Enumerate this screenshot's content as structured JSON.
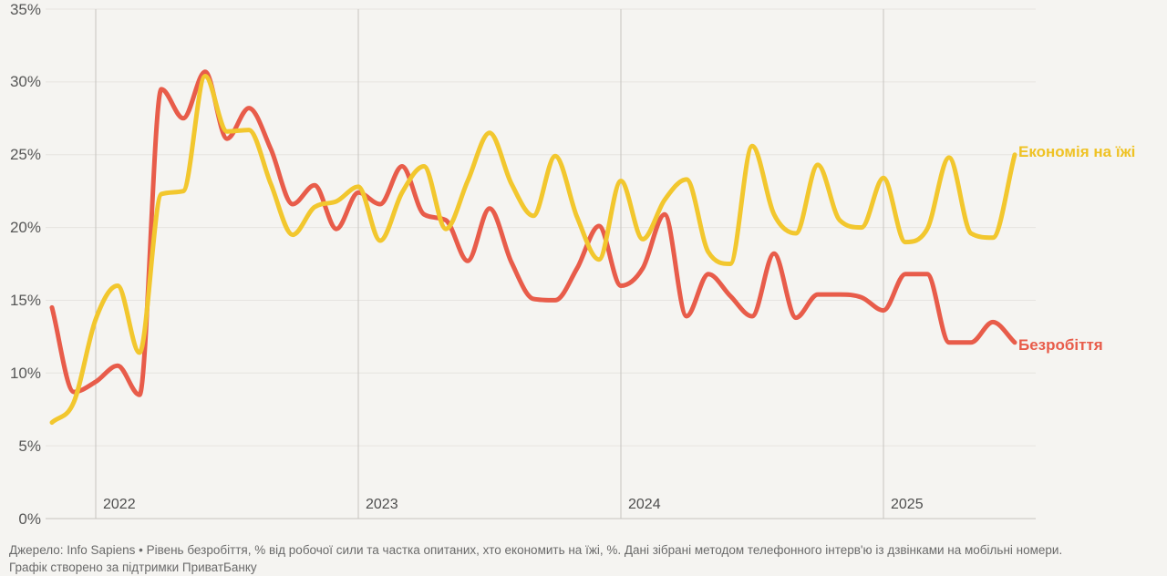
{
  "chart_data": {
    "type": "line",
    "title": "",
    "x": [
      "2021-11",
      "2021-12",
      "2022-01",
      "2022-02",
      "2022-03",
      "2022-04",
      "2022-05",
      "2022-06",
      "2022-07",
      "2022-08",
      "2022-09",
      "2022-10",
      "2022-11",
      "2022-12",
      "2023-01",
      "2023-02",
      "2023-03",
      "2023-04",
      "2023-05",
      "2023-06",
      "2023-07",
      "2023-08",
      "2023-09",
      "2023-10",
      "2023-11",
      "2023-12",
      "2024-01",
      "2024-02",
      "2024-03",
      "2024-04",
      "2024-05",
      "2024-06",
      "2024-07",
      "2024-08",
      "2024-09",
      "2024-10",
      "2024-11",
      "2024-12",
      "2025-01",
      "2025-02",
      "2025-03",
      "2025-04",
      "2025-05",
      "2025-06",
      "2025-07"
    ],
    "series": [
      {
        "name": "Безробіття",
        "color": "#e85c4a",
        "values": [
          14.5,
          8.7,
          9.4,
          10.5,
          8.5,
          29.5,
          27.5,
          30.7,
          26.1,
          28.2,
          25.4,
          21.6,
          22.9,
          19.9,
          22.4,
          21.6,
          24.2,
          20.9,
          20.5,
          17.7,
          21.3,
          17.6,
          15.1,
          15.0,
          17.2,
          20.1,
          16.0,
          17.2,
          20.9,
          13.9,
          16.8,
          15.3,
          13.9,
          18.2,
          13.8,
          15.4,
          15.4,
          15.2,
          14.3,
          16.8,
          16.8,
          12.1,
          12.1,
          13.5,
          12.1
        ]
      },
      {
        "name": "Економія на їжі",
        "color": "#f2c72e",
        "values": [
          6.6,
          8.0,
          13.7,
          16.0,
          11.4,
          22.3,
          22.5,
          30.4,
          26.6,
          26.7,
          23.0,
          19.5,
          21.4,
          21.8,
          22.8,
          19.1,
          22.4,
          24.2,
          19.9,
          23.2,
          26.5,
          23.0,
          20.8,
          24.9,
          20.7,
          17.8,
          23.2,
          19.2,
          21.9,
          23.3,
          18.3,
          17.5,
          25.6,
          20.9,
          19.6,
          24.3,
          20.5,
          20.0,
          23.4,
          19.0,
          19.9,
          24.8,
          19.6,
          19.3,
          25.0
        ]
      }
    ],
    "ylim": [
      0,
      35
    ],
    "y_axis": {
      "tick_values": [
        0,
        5,
        10,
        15,
        20,
        25,
        30,
        35
      ],
      "tick_labels": [
        "0%",
        "5%",
        "10%",
        "15%",
        "20%",
        "25%",
        "30%",
        "35%"
      ]
    },
    "x_year_labels": [
      "2022",
      "2023",
      "2024",
      "2025"
    ],
    "grid": "horizontal gridlines + vertical year separators",
    "legend_position": "direct labels at right end of lines"
  },
  "labels": {
    "food_savings": "Економія на їжі",
    "unemployment": "Безробіття"
  },
  "footer": {
    "line1": "Джерело: Info Sapiens • Рівень безробіття, % від робочої сили та частка опитаних, хто економить на їжі, %. Дані зібрані методом телефонного інтерв'ю із дзвінками на мобільні номери.",
    "line2": "Графік створено за підтримки ПриватБанку"
  },
  "colors": {
    "background": "#f5f4f1",
    "gridline": "#e6e4e0",
    "axis_line": "#c6c4c0",
    "unemployment_line": "#e85c4a",
    "food_savings_line": "#f2c72e",
    "tick_text": "#575757",
    "footer_text": "#6a6a6a"
  }
}
